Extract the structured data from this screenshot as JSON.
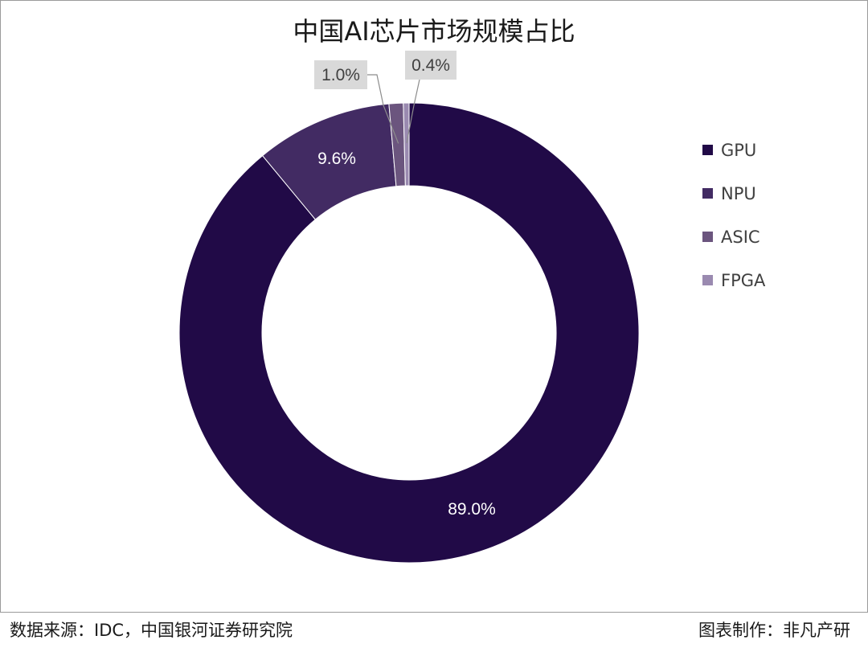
{
  "chart_data": {
    "type": "pie",
    "variant": "donut",
    "title": "中国AI芯片市场规模占比",
    "categories": [
      "GPU",
      "NPU",
      "ASIC",
      "FPGA"
    ],
    "values": [
      89.0,
      9.6,
      1.0,
      0.4
    ],
    "data_labels": [
      "89.0%",
      "9.6%",
      "1.0%",
      "0.4%"
    ],
    "colors": [
      "#210a47",
      "#422b63",
      "#6b557e",
      "#9a8ab0"
    ],
    "legend_position": "right"
  },
  "footer": {
    "source": "数据来源：IDC，中国银河证券研究院",
    "credit": "图表制作：非凡产研"
  }
}
